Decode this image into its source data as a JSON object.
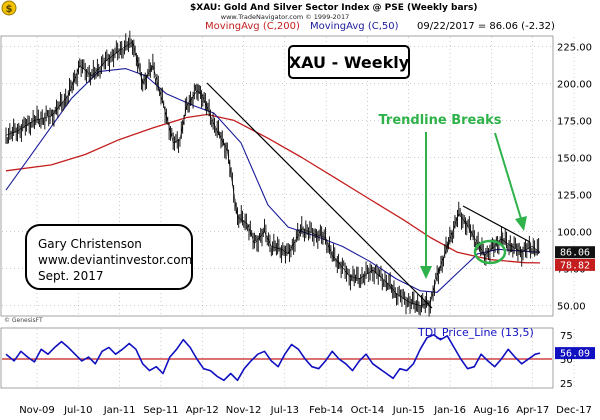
{
  "header": {
    "title": "$XAU:  Gold And Silver Sector Index @ PSE  (Weekly bars)",
    "copyright": "www.TradeNavigator.com © 1999-2017",
    "ma200_label": "MovingAvg (C,200)",
    "ma50_label": "MovingAvg (C,50)",
    "date_value": "09/22/2017 = 86.06 (-2.32)",
    "watermark": "© GenesisFT"
  },
  "colors": {
    "price": "#000000",
    "ma200": "#c41e1e",
    "ma50": "#1c1c9a",
    "tdi": "#1010c0",
    "tdi_ref": "#c41e1e",
    "annotation": "#2fb24a",
    "grid": "#999999"
  },
  "annotations": {
    "title_box": "XAU - Weekly",
    "trendline_label": "Trendline Breaks",
    "author_lines": [
      "Gary Christenson",
      "www.deviantinvestor.com",
      "Sept. 2017"
    ]
  },
  "chart_data": [
    {
      "type": "line",
      "title": "XAU - Weekly",
      "ylim": [
        43,
        232
      ],
      "y_ticks": [
        "225.00",
        "200.00",
        "175.00",
        "150.00",
        "125.00",
        "100.00",
        "75.00",
        "50.00"
      ],
      "x_ticks": [
        "Nov-09",
        "Jul-10",
        "Jan-11",
        "Sep-11",
        "Apr-12",
        "Nov-12",
        "Jul-13",
        "Feb-14",
        "Oct-14",
        "Jun-15",
        "Jan-16",
        "Aug-16",
        "Apr-17",
        "Dec-17"
      ],
      "last_values": {
        "price": "86.06",
        "ma200": "78.82"
      },
      "series": [
        {
          "name": "$XAU",
          "x": [
            2009.83,
            2010.0,
            2010.25,
            2010.5,
            2010.75,
            2010.92,
            2011.1,
            2011.3,
            2011.5,
            2011.7,
            2011.85,
            2012.0,
            2012.1,
            2012.2,
            2012.3,
            2012.4,
            2012.5,
            2012.65,
            2012.72,
            2012.85,
            2012.95,
            2013.1,
            2013.25,
            2013.4,
            2013.5,
            2013.65,
            2013.75,
            2013.9,
            2014.0,
            2014.2,
            2014.4,
            2014.55,
            2014.65,
            2014.8,
            2014.9,
            2015.05,
            2015.25,
            2015.45,
            2015.6,
            2015.8,
            2015.95,
            2016.1,
            2016.2,
            2016.35,
            2016.52,
            2016.62,
            2016.75,
            2016.9,
            2017.0,
            2017.15,
            2017.3,
            2017.45,
            2017.6,
            2017.72
          ],
          "values": [
            165,
            168,
            175,
            178,
            192,
            212,
            205,
            215,
            222,
            228,
            200,
            212,
            195,
            178,
            160,
            162,
            185,
            195,
            193,
            178,
            168,
            155,
            110,
            105,
            92,
            100,
            90,
            88,
            85,
            102,
            98,
            96,
            84,
            76,
            70,
            68,
            74,
            66,
            58,
            52,
            50,
            52,
            70,
            90,
            112,
            106,
            96,
            84,
            88,
            95,
            90,
            86,
            90,
            86
          ]
        },
        {
          "name": "MovingAvg (C,200)",
          "x": [
            2009.83,
            2010.5,
            2011.0,
            2011.5,
            2012.0,
            2012.5,
            2012.8,
            2013.2,
            2013.7,
            2014.2,
            2014.7,
            2015.2,
            2015.7,
            2016.1,
            2016.5,
            2017.0,
            2017.5,
            2017.72
          ],
          "values": [
            141,
            145,
            152,
            162,
            170,
            177,
            179,
            175,
            163,
            150,
            136,
            122,
            108,
            96,
            86,
            81,
            79,
            78.82
          ]
        },
        {
          "name": "MovingAvg (C,50)",
          "x": [
            2009.83,
            2010.3,
            2010.8,
            2011.2,
            2011.6,
            2011.9,
            2012.2,
            2012.6,
            2012.9,
            2013.3,
            2013.7,
            2014.0,
            2014.4,
            2014.8,
            2015.2,
            2015.6,
            2015.95,
            2016.2,
            2016.5,
            2016.8,
            2017.1,
            2017.4,
            2017.72
          ],
          "values": [
            128,
            158,
            190,
            208,
            210,
            205,
            193,
            185,
            180,
            160,
            118,
            103,
            97,
            90,
            80,
            68,
            60,
            59,
            72,
            85,
            88,
            87,
            86
          ]
        }
      ]
    },
    {
      "type": "line",
      "title": "TDI_Price_Line (13,5)",
      "ylim": [
        20,
        80
      ],
      "y_ticks": [
        "75",
        "50",
        "25"
      ],
      "last_value": "56.09",
      "reference_line": 50,
      "series": [
        {
          "name": "TDI_Price_Line (13,5)",
          "x": [
            2009.83,
            2009.95,
            2010.05,
            2010.15,
            2010.25,
            2010.35,
            2010.45,
            2010.55,
            2010.65,
            2010.75,
            2010.85,
            2010.95,
            2011.05,
            2011.15,
            2011.25,
            2011.35,
            2011.45,
            2011.55,
            2011.65,
            2011.75,
            2011.85,
            2011.95,
            2012.05,
            2012.15,
            2012.25,
            2012.35,
            2012.45,
            2012.55,
            2012.65,
            2012.75,
            2012.85,
            2012.95,
            2013.05,
            2013.15,
            2013.25,
            2013.35,
            2013.45,
            2013.55,
            2013.65,
            2013.75,
            2013.85,
            2013.95,
            2014.05,
            2014.15,
            2014.25,
            2014.35,
            2014.45,
            2014.55,
            2014.65,
            2014.75,
            2014.85,
            2014.95,
            2015.05,
            2015.15,
            2015.25,
            2015.35,
            2015.45,
            2015.55,
            2015.65,
            2015.75,
            2015.85,
            2015.95,
            2016.05,
            2016.15,
            2016.25,
            2016.35,
            2016.45,
            2016.55,
            2016.65,
            2016.75,
            2016.85,
            2016.95,
            2017.05,
            2017.15,
            2017.25,
            2017.35,
            2017.45,
            2017.55,
            2017.65,
            2017.72
          ],
          "values": [
            55,
            48,
            58,
            52,
            47,
            60,
            55,
            62,
            68,
            62,
            55,
            48,
            52,
            45,
            58,
            62,
            55,
            60,
            66,
            60,
            45,
            38,
            42,
            35,
            52,
            60,
            70,
            62,
            50,
            40,
            38,
            32,
            28,
            35,
            28,
            40,
            48,
            55,
            58,
            48,
            42,
            55,
            65,
            60,
            50,
            42,
            40,
            48,
            58,
            50,
            45,
            38,
            48,
            55,
            45,
            40,
            35,
            30,
            40,
            38,
            45,
            60,
            72,
            75,
            70,
            74,
            62,
            50,
            40,
            42,
            55,
            48,
            42,
            50,
            60,
            52,
            45,
            50,
            55,
            56.09
          ]
        }
      ]
    }
  ]
}
